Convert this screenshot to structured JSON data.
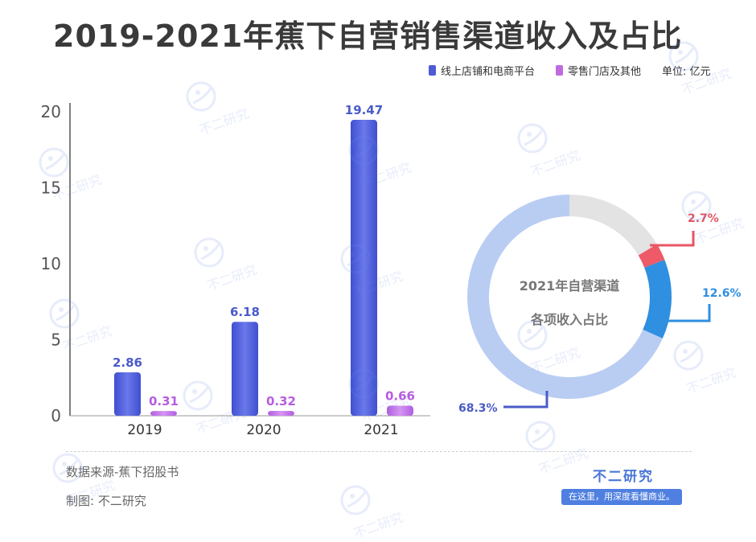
{
  "title": "2019-2021年蕉下自营销售渠道收入及占比",
  "legend": {
    "items": [
      {
        "label": "线上店铺和电商平台",
        "color": "#4f5bd5"
      },
      {
        "label": "零售门店及其他",
        "color": "#c06ae0"
      }
    ],
    "unit": "单位: 亿元"
  },
  "chart_data": [
    {
      "type": "bar",
      "categories": [
        "2019",
        "2020",
        "2021"
      ],
      "series": [
        {
          "name": "线上店铺和电商平台",
          "values": [
            2.86,
            6.18,
            19.47
          ]
        },
        {
          "name": "零售门店及其他",
          "values": [
            0.31,
            0.32,
            0.66
          ]
        }
      ],
      "data_labels": [
        [
          "2.86",
          "6.18",
          "19.47"
        ],
        [
          "0.31",
          "0.32",
          "0.66"
        ]
      ],
      "ylim": [
        0,
        20
      ],
      "yticks": [
        "0",
        "5",
        "10",
        "15",
        "20"
      ],
      "grid": false
    },
    {
      "type": "pie",
      "center_text": [
        "2021年自营渠道",
        "各项收入占比"
      ],
      "slices": [
        {
          "value": 68.3,
          "label": "68.3%",
          "color": "#b9cdf3"
        },
        {
          "value": 12.6,
          "label": "12.6%",
          "color": "#2f8fe0"
        },
        {
          "value": 2.7,
          "label": "2.7%",
          "color": "#ee5a67"
        },
        {
          "value": 16.4,
          "label": "",
          "color": "#e3e3e3"
        }
      ]
    }
  ],
  "footer": {
    "source": "数据来源-蕉下招股书",
    "maker": "制图: 不二研究",
    "brand_name": "不二研究",
    "brand_slogan": "在这里，用深度看懂商业。"
  },
  "watermark": "不二研究"
}
